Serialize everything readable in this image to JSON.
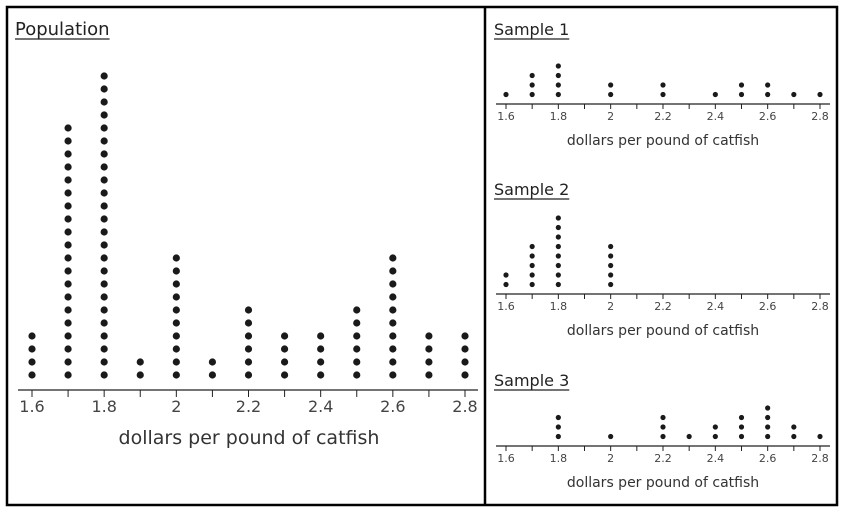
{
  "chart_data": [
    {
      "type": "dot",
      "title": "Population",
      "xlabel": "dollars per pound of catfish",
      "xlim": [
        1.6,
        2.8
      ],
      "ticks": [
        "1.6",
        "1.8",
        "2",
        "2.2",
        "2.4",
        "2.6",
        "2.8"
      ],
      "points": [
        {
          "x": 1.6,
          "count": 4
        },
        {
          "x": 1.7,
          "count": 20
        },
        {
          "x": 1.8,
          "count": 24
        },
        {
          "x": 1.9,
          "count": 2
        },
        {
          "x": 2.0,
          "count": 10
        },
        {
          "x": 2.1,
          "count": 2
        },
        {
          "x": 2.2,
          "count": 6
        },
        {
          "x": 2.3,
          "count": 4
        },
        {
          "x": 2.4,
          "count": 4
        },
        {
          "x": 2.5,
          "count": 6
        },
        {
          "x": 2.6,
          "count": 10
        },
        {
          "x": 2.7,
          "count": 4
        },
        {
          "x": 2.8,
          "count": 4
        }
      ]
    },
    {
      "type": "dot",
      "title": "Sample 1",
      "xlabel": "dollars per pound of catfish",
      "xlim": [
        1.6,
        2.8
      ],
      "ticks": [
        "1.6",
        "1.8",
        "2",
        "2.2",
        "2.4",
        "2.6",
        "2.8"
      ],
      "points": [
        {
          "x": 1.6,
          "count": 1
        },
        {
          "x": 1.7,
          "count": 3
        },
        {
          "x": 1.8,
          "count": 4
        },
        {
          "x": 2.0,
          "count": 2
        },
        {
          "x": 2.2,
          "count": 2
        },
        {
          "x": 2.4,
          "count": 1
        },
        {
          "x": 2.5,
          "count": 2
        },
        {
          "x": 2.6,
          "count": 2
        },
        {
          "x": 2.7,
          "count": 1
        },
        {
          "x": 2.8,
          "count": 1
        }
      ]
    },
    {
      "type": "dot",
      "title": "Sample 2",
      "xlabel": "dollars per pound of catfish",
      "xlim": [
        1.6,
        2.8
      ],
      "ticks": [
        "1.6",
        "1.8",
        "2",
        "2.2",
        "2.4",
        "2.6",
        "2.8"
      ],
      "points": [
        {
          "x": 1.6,
          "count": 2
        },
        {
          "x": 1.7,
          "count": 5
        },
        {
          "x": 1.8,
          "count": 8
        },
        {
          "x": 2.0,
          "count": 5
        }
      ]
    },
    {
      "type": "dot",
      "title": "Sample 3",
      "xlabel": "dollars per pound of catfish",
      "xlim": [
        1.6,
        2.8
      ],
      "ticks": [
        "1.6",
        "1.8",
        "2",
        "2.2",
        "2.4",
        "2.6",
        "2.8"
      ],
      "points": [
        {
          "x": 1.8,
          "count": 3
        },
        {
          "x": 2.0,
          "count": 1
        },
        {
          "x": 2.2,
          "count": 3
        },
        {
          "x": 2.3,
          "count": 1
        },
        {
          "x": 2.4,
          "count": 2
        },
        {
          "x": 2.5,
          "count": 3
        },
        {
          "x": 2.6,
          "count": 4
        },
        {
          "x": 2.7,
          "count": 2
        },
        {
          "x": 2.8,
          "count": 1
        }
      ]
    }
  ]
}
